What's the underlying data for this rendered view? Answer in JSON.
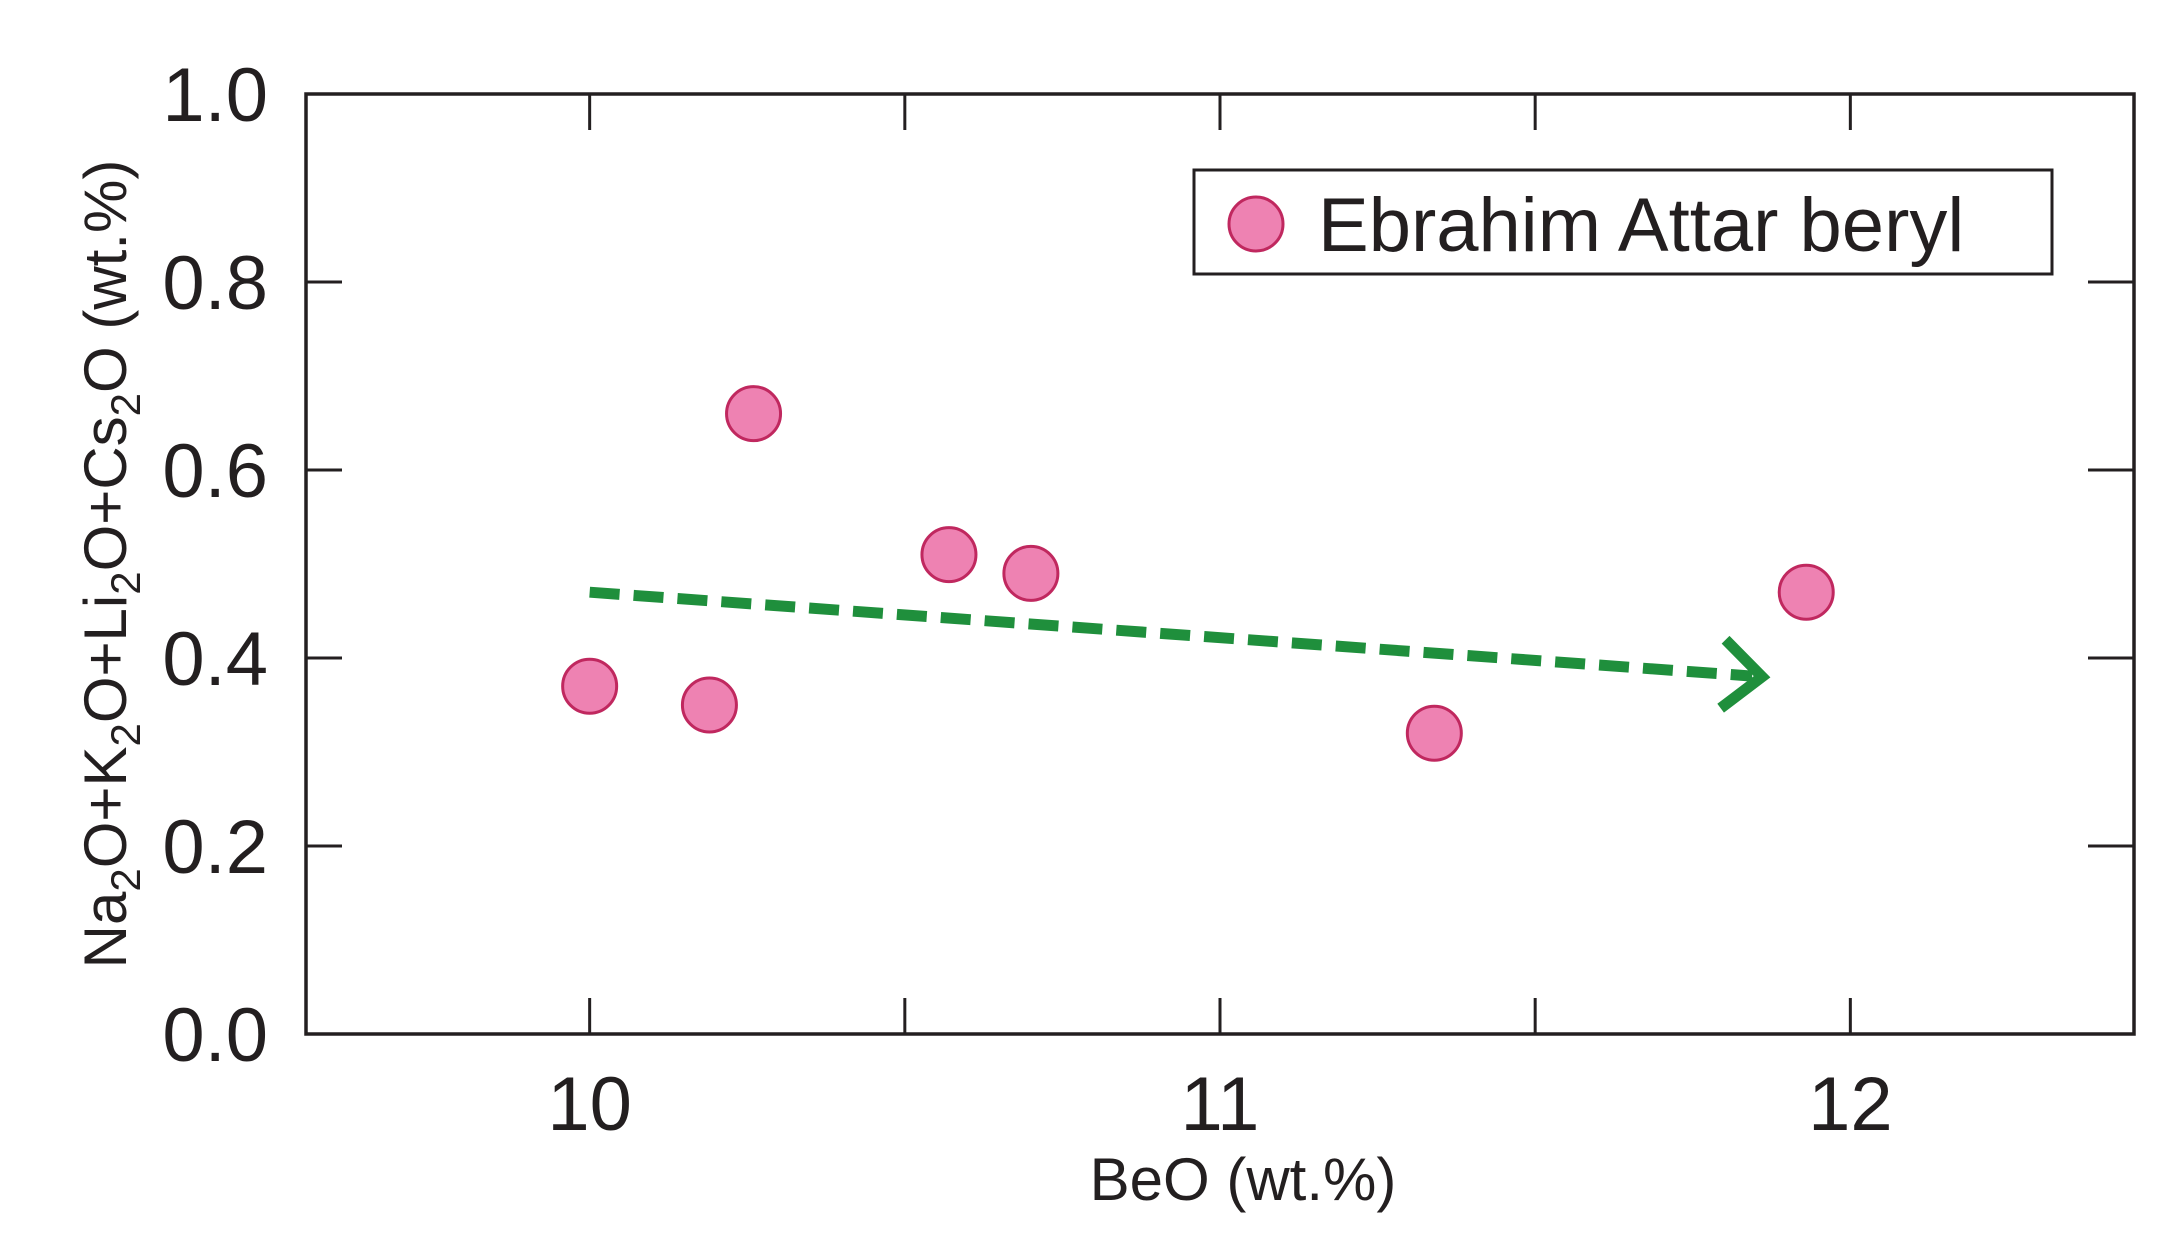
{
  "chart_data": {
    "type": "scatter",
    "xlabel": "BeO (wt.%)",
    "ylabel_parts": [
      "Na",
      "2",
      "O+K",
      "2",
      "O+Li",
      "2",
      "O+Cs",
      "2",
      "O (wt.%)"
    ],
    "xlim": [
      9.55,
      12.45
    ],
    "ylim": [
      0.0,
      1.0
    ],
    "x_ticks": [
      10,
      11,
      12
    ],
    "x_minor_ticks": [
      10.5,
      11.5
    ],
    "y_ticks": [
      "0.0",
      "0.2",
      "0.4",
      "0.6",
      "0.8",
      "1.0"
    ],
    "series": [
      {
        "name": "Ebrahim Attar beryl",
        "color": "#ee82b2",
        "edge_color": "#c0285f",
        "points": [
          {
            "x": 10.0,
            "y": 0.37
          },
          {
            "x": 10.19,
            "y": 0.35
          },
          {
            "x": 10.26,
            "y": 0.66
          },
          {
            "x": 10.57,
            "y": 0.51
          },
          {
            "x": 10.7,
            "y": 0.49
          },
          {
            "x": 11.34,
            "y": 0.32
          },
          {
            "x": 11.93,
            "y": 0.47
          }
        ]
      }
    ],
    "trend_arrow": {
      "color": "#1f8f3c",
      "style": "dashed",
      "from": {
        "x": 10.0,
        "y": 0.47
      },
      "to": {
        "x": 11.86,
        "y": 0.38
      }
    },
    "legend": "top-right",
    "grid": false
  }
}
